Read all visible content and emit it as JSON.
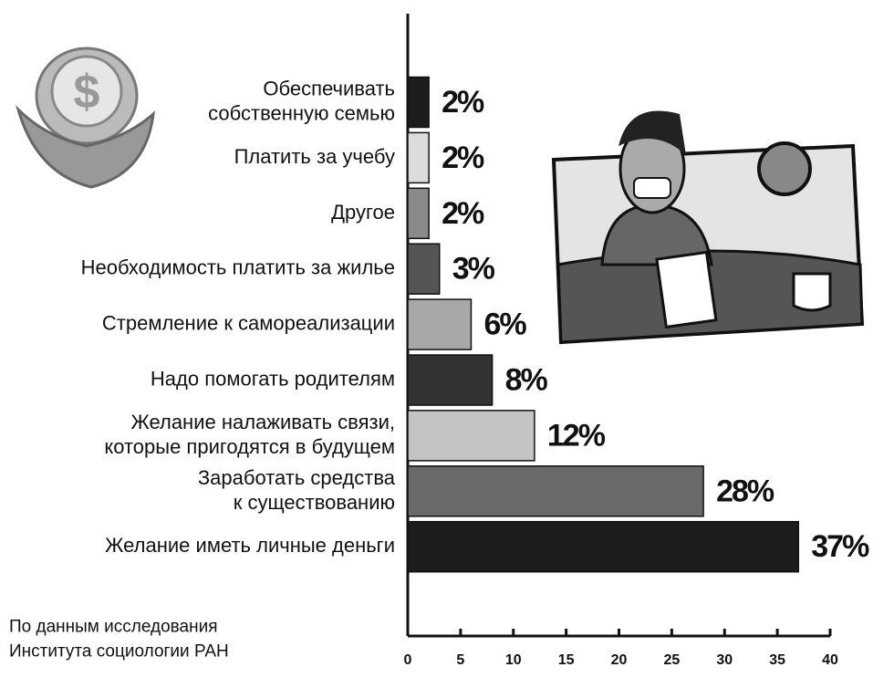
{
  "chart_data": {
    "type": "bar",
    "orientation": "horizontal",
    "categories": [
      "Обеспечивать\nсобственную семью",
      "Платить за учебу",
      "Другое",
      "Необходимость платить за жилье",
      "Стремление к самореализации",
      "Надо помогать родителям",
      "Желание налаживать связи,\nкоторые пригодятся в будущем",
      "Заработать средства\nк существованию",
      "Желание иметь личные деньги"
    ],
    "values": [
      2,
      2,
      2,
      3,
      6,
      8,
      12,
      28,
      37
    ],
    "value_labels": [
      "2%",
      "2%",
      "2%",
      "3%",
      "6%",
      "8%",
      "12%",
      "28%",
      "37%"
    ],
    "colors": [
      "#1c1c1c",
      "#dcdcdc",
      "#8a8a8a",
      "#555555",
      "#a8a8a8",
      "#333333",
      "#c4c4c4",
      "#6a6a6a",
      "#1c1c1c"
    ],
    "xlim": [
      0,
      40
    ],
    "xticks": [
      0,
      5,
      10,
      15,
      20,
      25,
      30,
      35,
      40
    ],
    "note": "По данным исследования\nИнститута социологии РАН"
  }
}
